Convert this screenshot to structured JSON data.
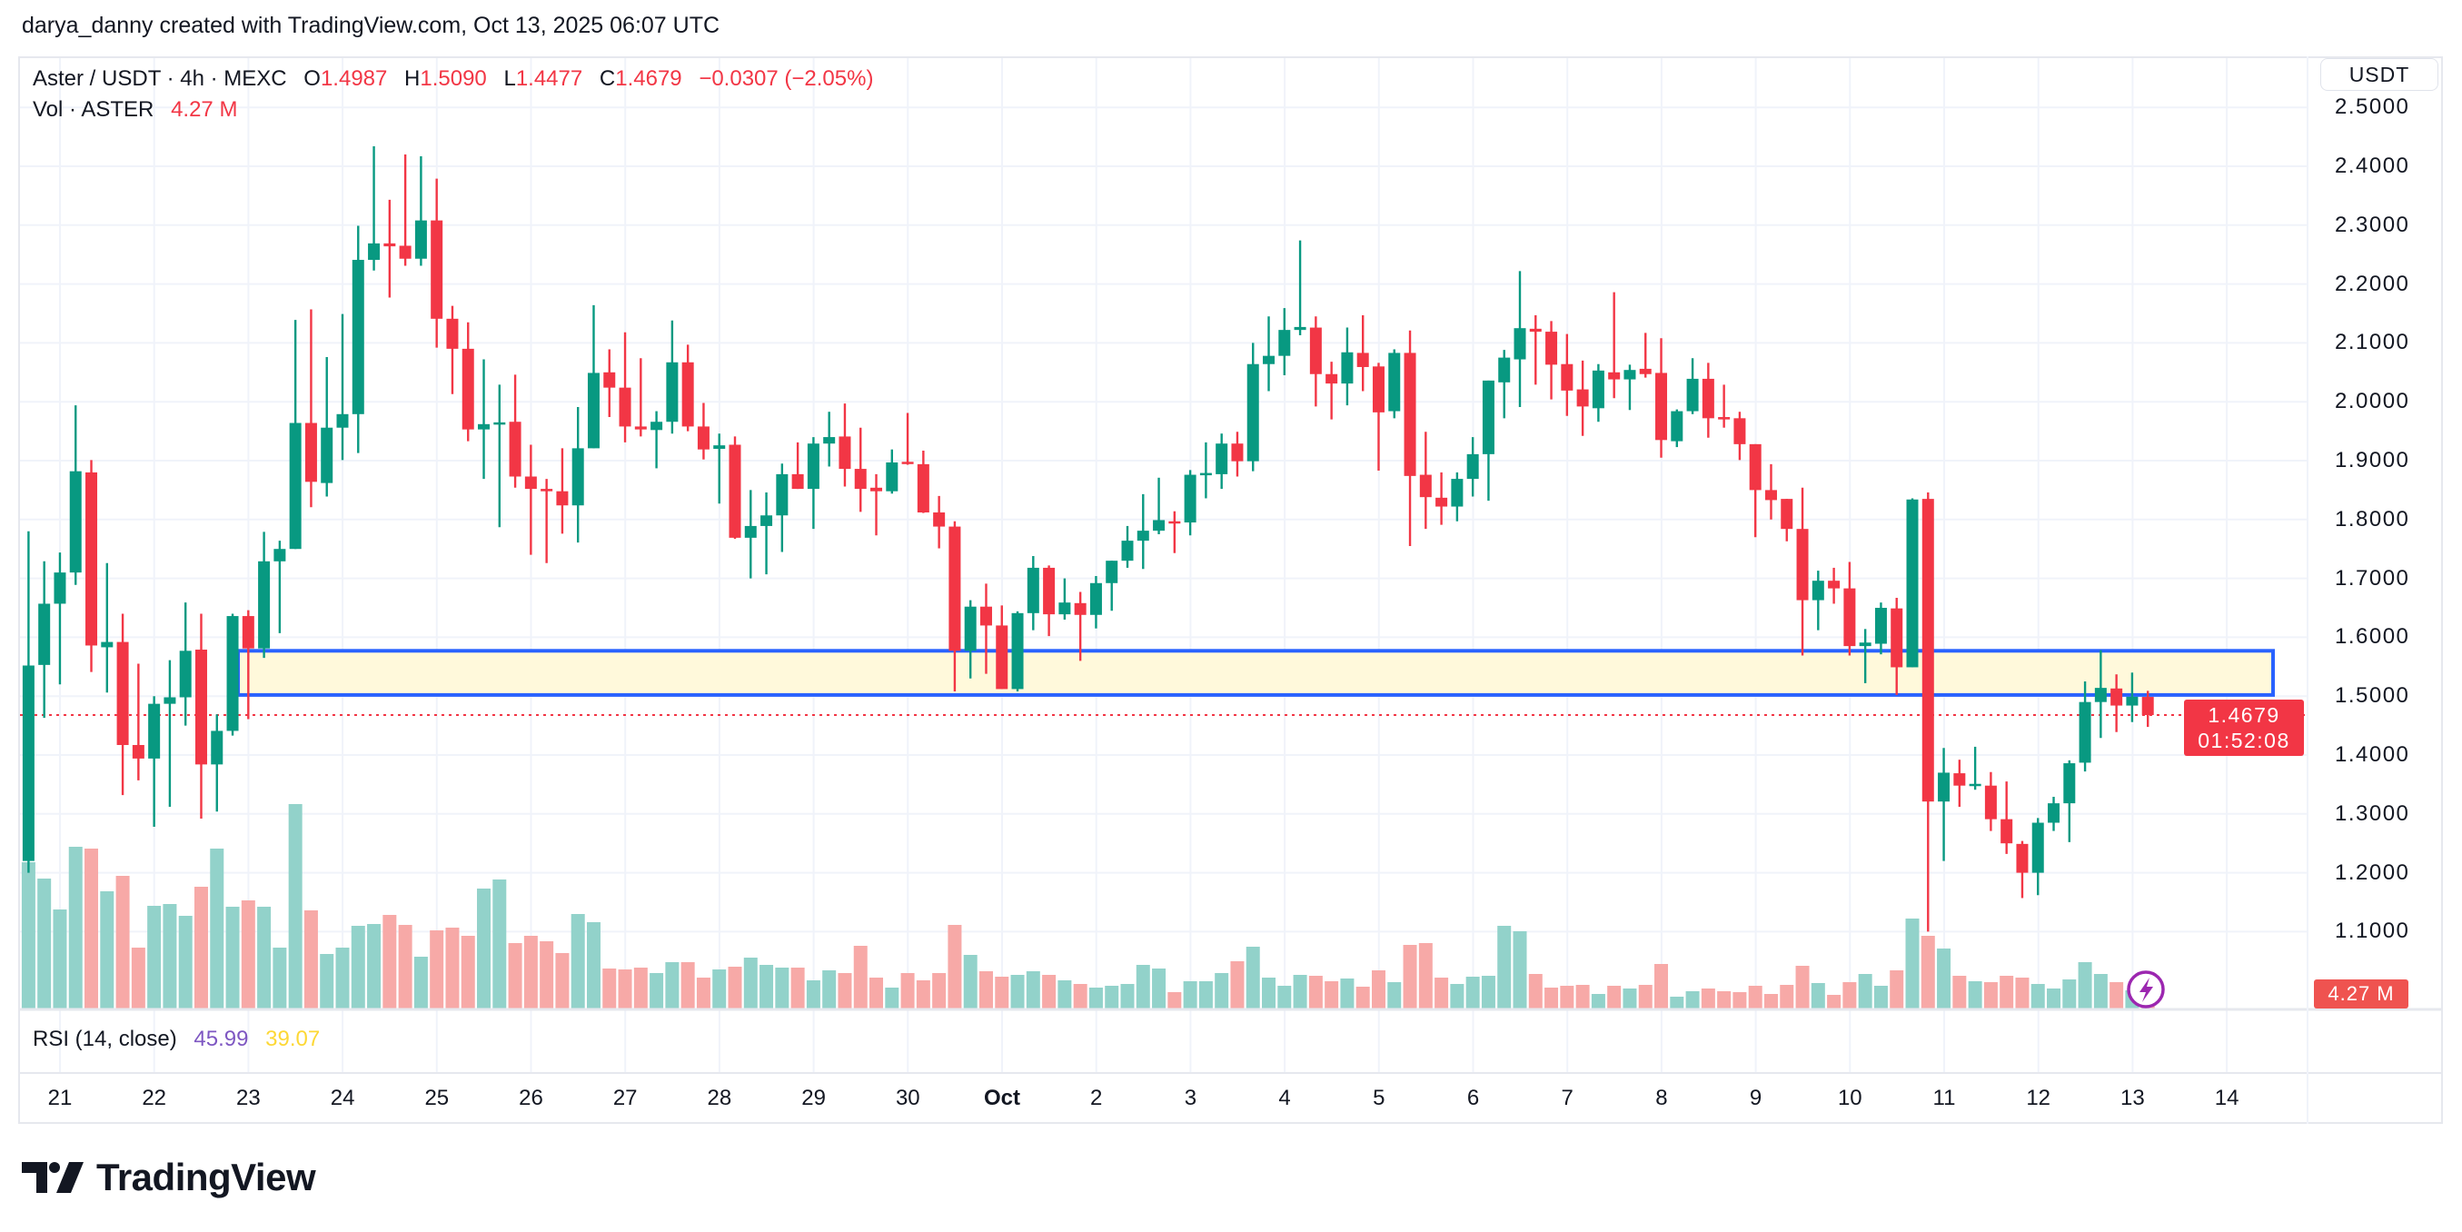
{
  "header": {
    "attribution": "darya_danny created with TradingView.com, Oct 13, 2025 06:07 UTC"
  },
  "legend": {
    "symbol": "Aster / USDT · 4h · MEXC",
    "o_label": "O",
    "o": "1.4987",
    "h_label": "H",
    "h": "1.5090",
    "l_label": "L",
    "l": "1.4477",
    "c_label": "C",
    "c": "1.4679",
    "change": "−0.0307 (−2.05%)",
    "vol_label": "Vol · ASTER",
    "vol": "4.27 M"
  },
  "price_axis": {
    "currency_button": "USDT",
    "ticks": [
      "2.5000",
      "2.4000",
      "2.3000",
      "2.2000",
      "2.1000",
      "2.0000",
      "1.9000",
      "1.8000",
      "1.7000",
      "1.6000",
      "1.5000",
      "1.4000",
      "1.3000",
      "1.2000",
      "1.1000"
    ],
    "last_price": "1.4679",
    "countdown": "01:52:08",
    "volume_tag": "4.27 M"
  },
  "rsi": {
    "label": "RSI (14, close)",
    "value": "45.99",
    "ma_value": "39.07",
    "value_color": "#7E57C2",
    "ma_color": "#FDD835"
  },
  "time_axis": {
    "labels": [
      "21",
      "22",
      "23",
      "24",
      "25",
      "26",
      "27",
      "28",
      "29",
      "30",
      "Oct",
      "2",
      "3",
      "4",
      "5",
      "6",
      "7",
      "8",
      "9",
      "10",
      "11",
      "12",
      "13",
      "14"
    ],
    "month_label": "Oct"
  },
  "logo": {
    "text": "TradingView"
  },
  "icons": {
    "alert": "lightning-icon",
    "logo": "tradingview-logo-icon"
  },
  "colors": {
    "up": "#089981",
    "down": "#F23645",
    "volume_up": "#92D2CA",
    "volume_down": "#F7A9A7",
    "zone_fill": "#FFF9DB",
    "zone_border": "#2962FF",
    "last_price_line": "#F23645",
    "alert_icon": "#9C27B0"
  },
  "chart_data": {
    "type": "candlestick",
    "interval": "4h",
    "y_range": [
      1.0,
      2.55
    ],
    "grid": true,
    "zone": {
      "low": 1.502,
      "high": 1.577
    },
    "last_price": 1.4679,
    "ohlc": [
      [
        1.22,
        1.78,
        1.2,
        1.552
      ],
      [
        1.553,
        1.729,
        1.463,
        1.657
      ],
      [
        1.657,
        1.744,
        1.52,
        1.71
      ],
      [
        1.71,
        1.994,
        1.689,
        1.882
      ],
      [
        1.88,
        1.901,
        1.541,
        1.586
      ],
      [
        1.583,
        1.726,
        1.506,
        1.592
      ],
      [
        1.592,
        1.64,
        1.332,
        1.417
      ],
      [
        1.417,
        1.555,
        1.357,
        1.394
      ],
      [
        1.394,
        1.5,
        1.278,
        1.487
      ],
      [
        1.487,
        1.561,
        1.312,
        1.498
      ],
      [
        1.498,
        1.659,
        1.45,
        1.577
      ],
      [
        1.579,
        1.64,
        1.292,
        1.384
      ],
      [
        1.384,
        1.469,
        1.304,
        1.441
      ],
      [
        1.441,
        1.64,
        1.433,
        1.636
      ],
      [
        1.636,
        1.646,
        1.461,
        1.581
      ],
      [
        1.581,
        1.779,
        1.565,
        1.729
      ],
      [
        1.729,
        1.764,
        1.607,
        1.75
      ],
      [
        1.75,
        2.139,
        1.75,
        1.964
      ],
      [
        1.964,
        2.157,
        1.821,
        1.864
      ],
      [
        1.862,
        2.076,
        1.839,
        1.956
      ],
      [
        1.956,
        2.149,
        1.901,
        1.979
      ],
      [
        1.979,
        2.299,
        1.913,
        2.241
      ],
      [
        2.241,
        2.434,
        2.223,
        2.269
      ],
      [
        2.269,
        2.343,
        2.177,
        2.264
      ],
      [
        2.265,
        2.42,
        2.231,
        2.243
      ],
      [
        2.243,
        2.417,
        2.231,
        2.308
      ],
      [
        2.308,
        2.379,
        2.092,
        2.141
      ],
      [
        2.141,
        2.163,
        2.013,
        2.09
      ],
      [
        2.09,
        2.135,
        1.933,
        1.953
      ],
      [
        1.953,
        2.072,
        1.869,
        1.962
      ],
      [
        1.962,
        2.029,
        1.787,
        1.965
      ],
      [
        1.966,
        2.046,
        1.854,
        1.873
      ],
      [
        1.873,
        1.927,
        1.74,
        1.852
      ],
      [
        1.852,
        1.869,
        1.726,
        1.848
      ],
      [
        1.848,
        1.921,
        1.776,
        1.824
      ],
      [
        1.824,
        1.991,
        1.761,
        1.921
      ],
      [
        1.921,
        2.164,
        1.921,
        2.049
      ],
      [
        2.05,
        2.089,
        1.974,
        2.024
      ],
      [
        2.024,
        2.118,
        1.931,
        1.958
      ],
      [
        1.958,
        2.074,
        1.941,
        1.953
      ],
      [
        1.952,
        1.984,
        1.887,
        1.966
      ],
      [
        1.966,
        2.138,
        1.946,
        2.067
      ],
      [
        2.067,
        2.097,
        1.95,
        1.958
      ],
      [
        1.958,
        1.998,
        1.902,
        1.919
      ],
      [
        1.92,
        1.946,
        1.827,
        1.926
      ],
      [
        1.927,
        1.941,
        1.767,
        1.769
      ],
      [
        1.769,
        1.85,
        1.7,
        1.789
      ],
      [
        1.789,
        1.846,
        1.707,
        1.807
      ],
      [
        1.807,
        1.895,
        1.745,
        1.877
      ],
      [
        1.877,
        1.931,
        1.852,
        1.852
      ],
      [
        1.852,
        1.94,
        1.784,
        1.929
      ],
      [
        1.929,
        1.983,
        1.89,
        1.94
      ],
      [
        1.941,
        1.997,
        1.856,
        1.886
      ],
      [
        1.886,
        1.956,
        1.813,
        1.852
      ],
      [
        1.854,
        1.877,
        1.773,
        1.848
      ],
      [
        1.848,
        1.919,
        1.844,
        1.897
      ],
      [
        1.898,
        1.981,
        1.893,
        1.895
      ],
      [
        1.894,
        1.917,
        1.811,
        1.812
      ],
      [
        1.812,
        1.84,
        1.751,
        1.788
      ],
      [
        1.788,
        1.797,
        1.508,
        1.577
      ],
      [
        1.577,
        1.663,
        1.53,
        1.652
      ],
      [
        1.652,
        1.691,
        1.538,
        1.62
      ],
      [
        1.62,
        1.654,
        1.512,
        1.512
      ],
      [
        1.512,
        1.644,
        1.508,
        1.641
      ],
      [
        1.641,
        1.738,
        1.612,
        1.718
      ],
      [
        1.718,
        1.722,
        1.602,
        1.639
      ],
      [
        1.639,
        1.7,
        1.63,
        1.659
      ],
      [
        1.658,
        1.677,
        1.56,
        1.638
      ],
      [
        1.638,
        1.704,
        1.615,
        1.692
      ],
      [
        1.692,
        1.73,
        1.645,
        1.73
      ],
      [
        1.73,
        1.789,
        1.718,
        1.764
      ],
      [
        1.764,
        1.843,
        1.716,
        1.781
      ],
      [
        1.781,
        1.871,
        1.775,
        1.799
      ],
      [
        1.797,
        1.814,
        1.743,
        1.795
      ],
      [
        1.795,
        1.884,
        1.773,
        1.876
      ],
      [
        1.876,
        1.931,
        1.836,
        1.879
      ],
      [
        1.877,
        1.946,
        1.852,
        1.929
      ],
      [
        1.929,
        1.949,
        1.873,
        1.899
      ],
      [
        1.899,
        2.1,
        1.882,
        2.064
      ],
      [
        2.064,
        2.145,
        2.018,
        2.078
      ],
      [
        2.078,
        2.159,
        2.045,
        2.122
      ],
      [
        2.122,
        2.274,
        2.113,
        2.127
      ],
      [
        2.126,
        2.145,
        1.992,
        2.047
      ],
      [
        2.047,
        2.068,
        1.97,
        2.031
      ],
      [
        2.031,
        2.126,
        1.994,
        2.084
      ],
      [
        2.083,
        2.147,
        2.018,
        2.059
      ],
      [
        2.06,
        2.066,
        1.883,
        1.982
      ],
      [
        1.984,
        2.089,
        1.972,
        2.083
      ],
      [
        2.083,
        2.121,
        1.755,
        1.874
      ],
      [
        1.876,
        1.949,
        1.784,
        1.838
      ],
      [
        1.837,
        1.88,
        1.791,
        1.822
      ],
      [
        1.822,
        1.88,
        1.797,
        1.869
      ],
      [
        1.869,
        1.94,
        1.839,
        1.911
      ],
      [
        1.911,
        2.036,
        1.832,
        2.036
      ],
      [
        2.033,
        2.088,
        1.972,
        2.075
      ],
      [
        2.072,
        2.222,
        1.991,
        2.125
      ],
      [
        2.124,
        2.147,
        2.029,
        2.119
      ],
      [
        2.119,
        2.137,
        2.004,
        2.063
      ],
      [
        2.064,
        2.115,
        1.976,
        2.019
      ],
      [
        2.021,
        2.07,
        1.942,
        1.992
      ],
      [
        1.989,
        2.064,
        1.966,
        2.053
      ],
      [
        2.05,
        2.186,
        2.006,
        2.038
      ],
      [
        2.038,
        2.063,
        1.986,
        2.054
      ],
      [
        2.056,
        2.117,
        2.041,
        2.047
      ],
      [
        2.049,
        2.108,
        1.905,
        1.935
      ],
      [
        1.933,
        1.987,
        1.923,
        1.984
      ],
      [
        1.984,
        2.074,
        1.979,
        2.039
      ],
      [
        2.039,
        2.066,
        1.939,
        1.972
      ],
      [
        1.974,
        2.029,
        1.956,
        1.97
      ],
      [
        1.972,
        1.983,
        1.901,
        1.928
      ],
      [
        1.928,
        1.928,
        1.77,
        1.85
      ],
      [
        1.85,
        1.894,
        1.8,
        1.833
      ],
      [
        1.835,
        1.835,
        1.763,
        1.784
      ],
      [
        1.784,
        1.854,
        1.569,
        1.663
      ],
      [
        1.663,
        1.713,
        1.612,
        1.696
      ],
      [
        1.696,
        1.718,
        1.657,
        1.683
      ],
      [
        1.683,
        1.728,
        1.569,
        1.585
      ],
      [
        1.585,
        1.614,
        1.522,
        1.591
      ],
      [
        1.589,
        1.659,
        1.571,
        1.65
      ],
      [
        1.649,
        1.667,
        1.502,
        1.549
      ],
      [
        1.549,
        1.836,
        1.549,
        1.834
      ],
      [
        1.835,
        1.846,
        1.1,
        1.321
      ],
      [
        1.321,
        1.412,
        1.22,
        1.37
      ],
      [
        1.369,
        1.392,
        1.312,
        1.348
      ],
      [
        1.349,
        1.414,
        1.341,
        1.351
      ],
      [
        1.348,
        1.371,
        1.271,
        1.291
      ],
      [
        1.291,
        1.355,
        1.232,
        1.25
      ],
      [
        1.249,
        1.254,
        1.157,
        1.2
      ],
      [
        1.2,
        1.293,
        1.162,
        1.285
      ],
      [
        1.285,
        1.329,
        1.271,
        1.318
      ],
      [
        1.318,
        1.391,
        1.252,
        1.386
      ],
      [
        1.387,
        1.525,
        1.372,
        1.49
      ],
      [
        1.49,
        1.578,
        1.429,
        1.514
      ],
      [
        1.513,
        1.537,
        1.439,
        1.484
      ],
      [
        1.484,
        1.54,
        1.456,
        1.499
      ],
      [
        1.4987,
        1.509,
        1.4477,
        1.4679
      ]
    ],
    "volume_millions": [
      161,
      143,
      109,
      178,
      176,
      129,
      146,
      67,
      113,
      115,
      102,
      134,
      176,
      112,
      119,
      112,
      67,
      225,
      108,
      60,
      67,
      91,
      93,
      103,
      92,
      57,
      86,
      89,
      80,
      132,
      142,
      72,
      80,
      74,
      61,
      104,
      95,
      44,
      43,
      45,
      39,
      51,
      51,
      34,
      43,
      46,
      56,
      48,
      45,
      45,
      31,
      42,
      39,
      69,
      34,
      23,
      39,
      31,
      39,
      92,
      59,
      41,
      35,
      37,
      41,
      37,
      31,
      27,
      23,
      25,
      27,
      48,
      44,
      18,
      30,
      30,
      39,
      52,
      68,
      34,
      25,
      37,
      36,
      30,
      33,
      24,
      42,
      29,
      70,
      72,
      34,
      27,
      35,
      36,
      91,
      85,
      38,
      23,
      25,
      26,
      16,
      25,
      22,
      26,
      49,
      13,
      19,
      22,
      19,
      18,
      25,
      16,
      26,
      47,
      28,
      15,
      29,
      38,
      25,
      42,
      99,
      80,
      66,
      36,
      30,
      29,
      36,
      34,
      27,
      22,
      32,
      51,
      38,
      29,
      20,
      4.27
    ]
  }
}
